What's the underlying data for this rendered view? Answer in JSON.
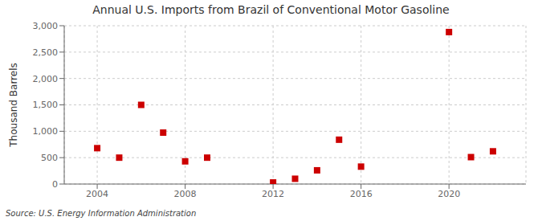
{
  "chart_data": {
    "type": "scatter",
    "title": "Annual U.S. Imports from Brazil of Conventional Motor Gasoline",
    "ylabel": "Thousand Barrels",
    "source": "Source: U.S. Energy Information Administration",
    "x": [
      2004,
      2005,
      2006,
      2007,
      2008,
      2009,
      2012,
      2013,
      2014,
      2015,
      2016,
      2020,
      2021,
      2022
    ],
    "values": [
      680,
      500,
      1500,
      975,
      430,
      500,
      30,
      100,
      260,
      840,
      330,
      2880,
      510,
      620
    ],
    "color": "#cc0000",
    "marker": "square",
    "xlim": [
      2002.5,
      2023.5
    ],
    "xticks": [
      2004,
      2008,
      2012,
      2016,
      2020
    ],
    "ylim": [
      0,
      3000
    ],
    "yticks": [
      0,
      500,
      {
        "value": 1000,
        "label": "1,000"
      },
      {
        "value": 1500,
        "label": "1,500"
      },
      {
        "value": 2000,
        "label": "2,000"
      },
      {
        "value": 2500,
        "label": "2,500"
      },
      {
        "value": 3000,
        "label": "3,000"
      }
    ],
    "grid": true
  }
}
